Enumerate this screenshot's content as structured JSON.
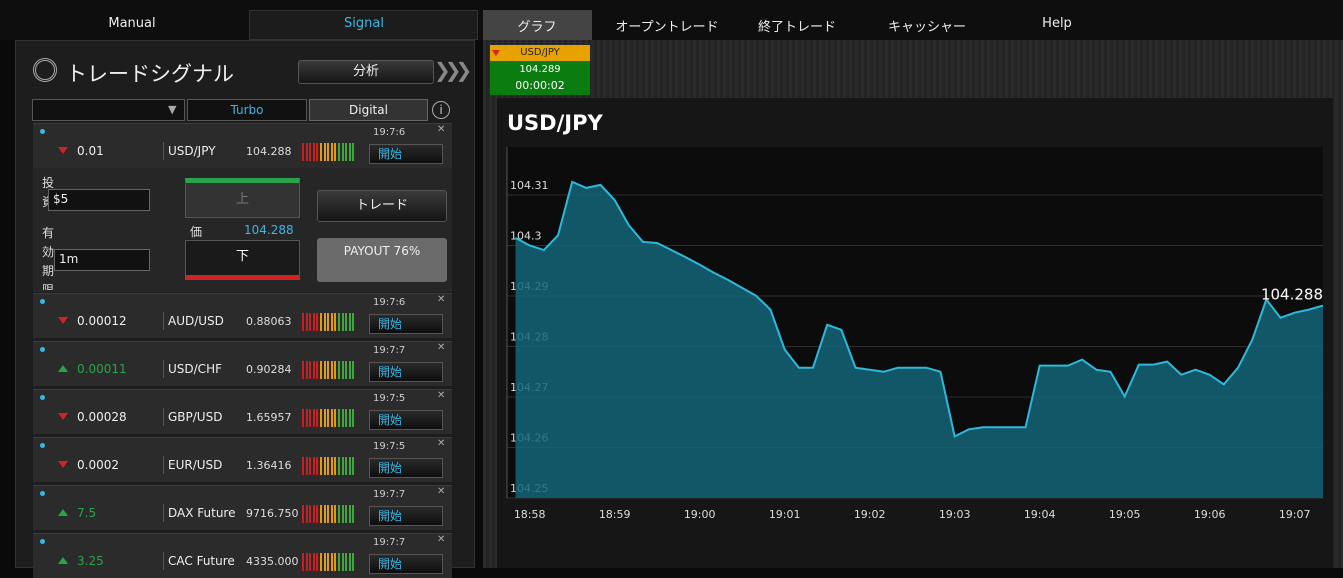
{
  "nav": {
    "tabs": [
      "Manual",
      "Signal",
      "グラフ",
      "オープントレード",
      "終了トレード",
      "キャッシャー",
      "Help"
    ]
  },
  "signal_panel": {
    "title": "トレードシグナル",
    "analysis_button": "分析",
    "filter_tabs": [
      "Turbo",
      "Digital"
    ],
    "signals": [
      {
        "direction": "down",
        "strength": "0.01",
        "pair": "USD/JPY",
        "price": "104.288",
        "time": "19:7:6",
        "button": "開始"
      },
      {
        "direction": "down",
        "strength": "0.00012",
        "pair": "AUD/USD",
        "price": "0.88063",
        "time": "19:7:6",
        "button": "開始"
      },
      {
        "direction": "up",
        "strength": "0.00011",
        "pair": "USD/CHF",
        "price": "0.90284",
        "time": "19:7:7",
        "button": "開始"
      },
      {
        "direction": "down",
        "strength": "0.00028",
        "pair": "GBP/USD",
        "price": "1.65957",
        "time": "19:7:5",
        "button": "開始"
      },
      {
        "direction": "down",
        "strength": "0.0002",
        "pair": "EUR/USD",
        "price": "1.36416",
        "time": "19:7:5",
        "button": "開始"
      },
      {
        "direction": "up",
        "strength": "7.5",
        "pair": "DAX Future",
        "price": "9716.750",
        "time": "19:7:7",
        "button": "開始"
      },
      {
        "direction": "up",
        "strength": "3.25",
        "pair": "CAC Future",
        "price": "4335.000",
        "time": "19:7:7",
        "button": "開始"
      }
    ],
    "trade_form": {
      "investment_label": "投資",
      "investment_value": "$5",
      "expiry_label": "有効期限",
      "expiry_value": "1m",
      "up_button": "上",
      "down_button": "下",
      "price_label": "価",
      "price": "104.288",
      "trade_button": "トレード",
      "payout": "PAYOUT 76%"
    }
  },
  "ticker": {
    "pair": "USD/JPY",
    "price": "104.289",
    "timer": "00:00:02"
  },
  "chart_data": {
    "type": "area",
    "title": "USD/JPY",
    "last_label": "104.288",
    "color": "#2fb8d8",
    "xlim": [
      -1.6,
      56
    ],
    "xticks": [
      {
        "value": 0,
        "label": "18:58"
      },
      {
        "value": 6,
        "label": "18:59"
      },
      {
        "value": 12,
        "label": "19:00"
      },
      {
        "value": 18,
        "label": "19:01"
      },
      {
        "value": 24,
        "label": "19:02"
      },
      {
        "value": 30,
        "label": "19:03"
      },
      {
        "value": 36,
        "label": "19:04"
      },
      {
        "value": 42,
        "label": "19:05"
      },
      {
        "value": 48,
        "label": "19:06"
      },
      {
        "value": 54,
        "label": "19:07"
      }
    ],
    "ylim": [
      104.25,
      104.3195
    ],
    "yticks": [
      104.25,
      104.26,
      104.27,
      104.28,
      104.29,
      104.3,
      104.31
    ],
    "x": [
      -1,
      0,
      1,
      2,
      3,
      4,
      5,
      6,
      7,
      8,
      9,
      10,
      11,
      12,
      13,
      14,
      15,
      16,
      17,
      18,
      19,
      20,
      21,
      22,
      23,
      24,
      25,
      26,
      27,
      28,
      29,
      30,
      31,
      32,
      33,
      34,
      35,
      36,
      37,
      38,
      39,
      40,
      41,
      42,
      43,
      44,
      45,
      46,
      47,
      48,
      49,
      50,
      51,
      52,
      53,
      54,
      55,
      56
    ],
    "values": [
      104.3015,
      104.3,
      104.2991,
      104.302,
      104.3126,
      104.3114,
      104.312,
      104.309,
      104.304,
      104.3007,
      104.3005,
      104.2991,
      104.2977,
      104.2962,
      104.2946,
      104.2932,
      104.2916,
      104.29,
      104.2873,
      104.2794,
      104.2758,
      104.2758,
      104.2843,
      104.2833,
      104.2758,
      104.2754,
      104.275,
      104.2758,
      104.2758,
      104.2758,
      104.275,
      104.2622,
      104.2636,
      104.264,
      104.264,
      104.264,
      104.264,
      104.2762,
      104.2762,
      104.2762,
      104.2774,
      104.2754,
      104.275,
      104.2701,
      104.2764,
      104.2764,
      104.277,
      104.2744,
      104.2754,
      104.2744,
      104.2725,
      104.2758,
      104.2813,
      104.2893,
      104.2857,
      104.2867,
      104.2873,
      104.2881
    ]
  }
}
